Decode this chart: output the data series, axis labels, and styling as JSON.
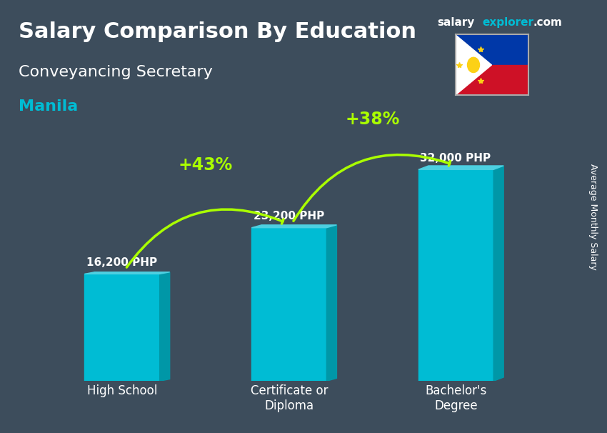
{
  "title": "Salary Comparison By Education",
  "subtitle": "Conveyancing Secretary",
  "city": "Manila",
  "ylabel": "Average Monthly Salary",
  "categories": [
    "High School",
    "Certificate or\nDiploma",
    "Bachelor's\nDegree"
  ],
  "values": [
    16200,
    23200,
    32000
  ],
  "value_labels": [
    "16,200 PHP",
    "23,200 PHP",
    "32,000 PHP"
  ],
  "bar_color_face": "#00bcd4",
  "bar_color_dark": "#0097a7",
  "bar_color_top": "#4dd0e1",
  "pct_labels": [
    "+43%",
    "+38%"
  ],
  "pct_color": "#aaff00",
  "bg_color": "#3a4a5a",
  "text_color": "#ffffff",
  "title_fontsize": 22,
  "subtitle_fontsize": 16,
  "city_color": "#00bcd4",
  "brand_salary": "salary",
  "brand_explorer": "explorer",
  "brand_com": ".com",
  "brand_color_salary": "#ffffff",
  "brand_color_explorer": "#00bcd4",
  "figsize": [
    8.5,
    6.06
  ]
}
